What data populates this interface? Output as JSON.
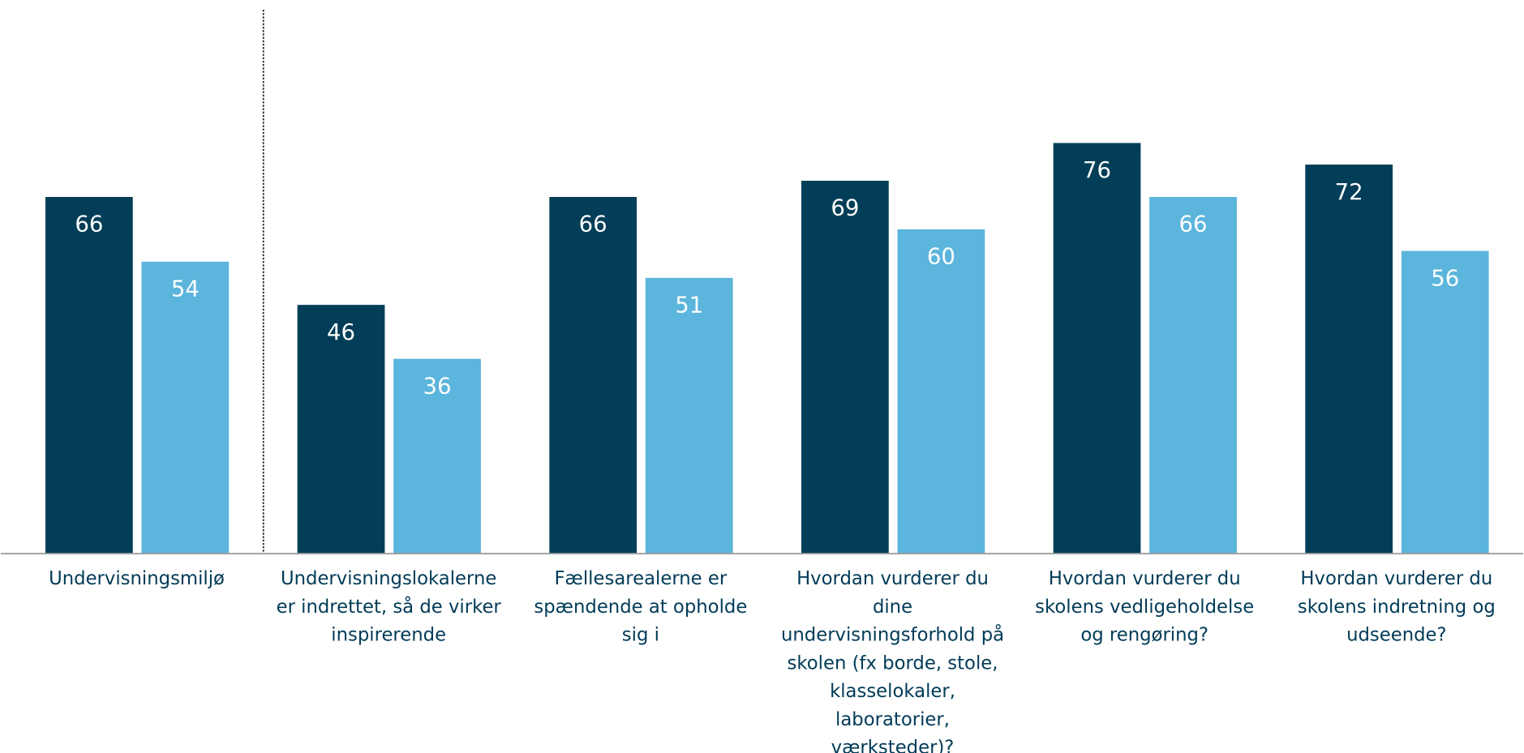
{
  "chart_data": {
    "type": "bar",
    "categories": [
      [
        "Undervisningsmiljø"
      ],
      [
        "Undervisningslokalerne",
        "er indrettet, så de virker",
        "inspirerende"
      ],
      [
        "Fællesarealerne er",
        "spændende at opholde",
        "sig i"
      ],
      [
        "Hvordan vurderer du",
        "dine",
        "undervisningsforhold på",
        "skolen (fx borde, stole,",
        "klasselokaler,",
        "laboratorier,",
        "værksteder)?"
      ],
      [
        "Hvordan vurderer du",
        "skolens vedligeholdelse",
        "og rengøring?"
      ],
      [
        "Hvordan vurderer du",
        "skolens indretning og",
        "udseende?"
      ]
    ],
    "series": [
      {
        "color": "#023e58",
        "values": [
          66,
          46,
          66,
          69,
          76,
          72
        ]
      },
      {
        "color": "#5bb5dc",
        "values": [
          54,
          36,
          51,
          60,
          66,
          56
        ]
      }
    ],
    "ylim": [
      0,
      102.5
    ]
  }
}
